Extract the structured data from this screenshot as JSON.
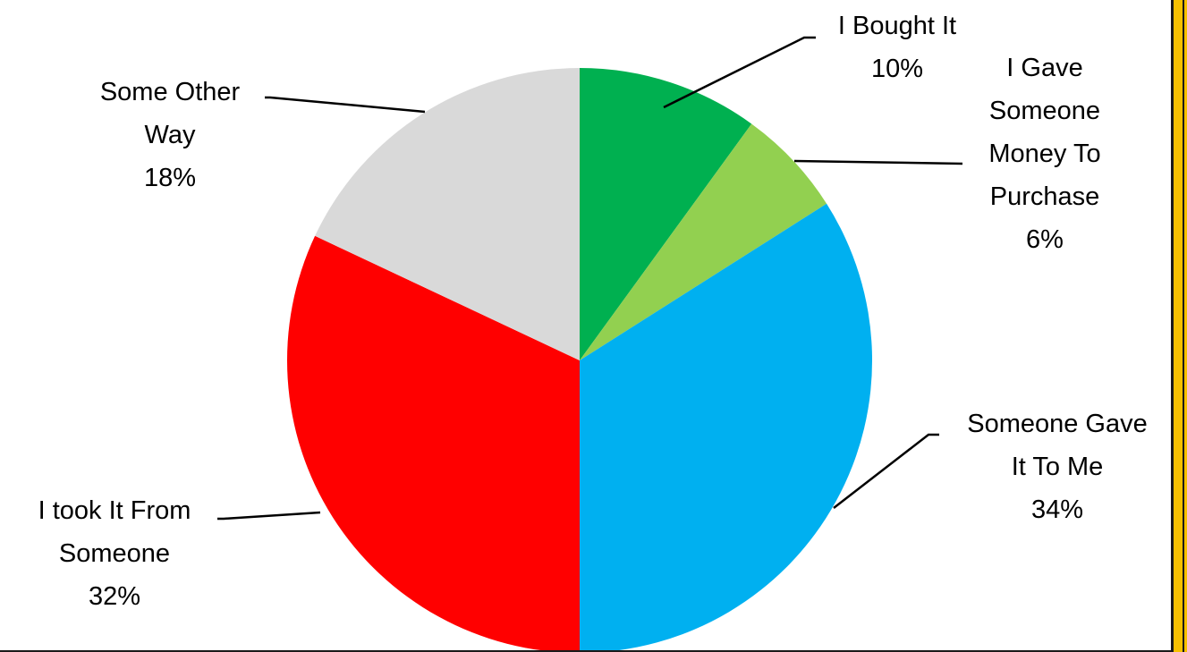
{
  "chart_data": {
    "type": "pie",
    "title": "",
    "start_angle_deg": 0,
    "direction": "clockwise",
    "slices": [
      {
        "lines": [
          "I Bought It"
        ],
        "pct_label": "10%",
        "value": 10,
        "color": "#00b050"
      },
      {
        "lines": [
          "I Gave",
          "Someone",
          "Money To",
          "Purchase"
        ],
        "pct_label": "6%",
        "value": 6,
        "color": "#92d050"
      },
      {
        "lines": [
          "Someone Gave",
          "It To Me"
        ],
        "pct_label": "34%",
        "value": 34,
        "color": "#00b0f0"
      },
      {
        "lines": [
          "I took It From",
          "Someone"
        ],
        "pct_label": "32%",
        "value": 32,
        "color": "#ff0000"
      },
      {
        "lines": [
          "Some Other",
          "Way"
        ],
        "pct_label": "18%",
        "value": 18,
        "color": "#d9d9d9"
      }
    ]
  }
}
